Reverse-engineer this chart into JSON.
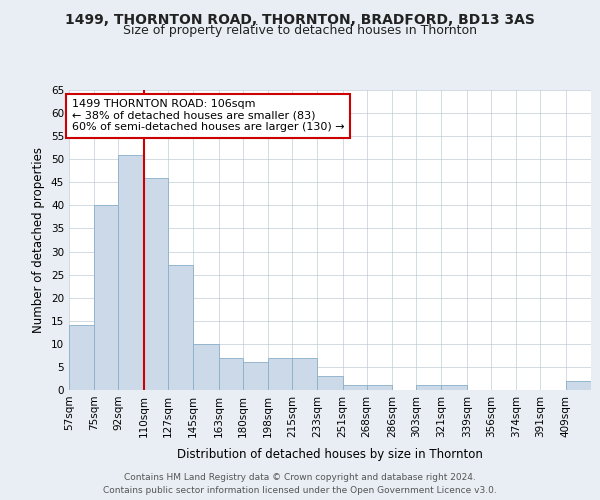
{
  "title": "1499, THORNTON ROAD, THORNTON, BRADFORD, BD13 3AS",
  "subtitle": "Size of property relative to detached houses in Thornton",
  "xlabel": "Distribution of detached houses by size in Thornton",
  "ylabel": "Number of detached properties",
  "bin_labels": [
    "57sqm",
    "75sqm",
    "92sqm",
    "110sqm",
    "127sqm",
    "145sqm",
    "163sqm",
    "180sqm",
    "198sqm",
    "215sqm",
    "233sqm",
    "251sqm",
    "268sqm",
    "286sqm",
    "303sqm",
    "321sqm",
    "339sqm",
    "356sqm",
    "374sqm",
    "391sqm",
    "409sqm"
  ],
  "bin_edges": [
    57,
    75,
    92,
    110,
    127,
    145,
    163,
    180,
    198,
    215,
    233,
    251,
    268,
    286,
    303,
    321,
    339,
    356,
    374,
    391,
    409,
    427
  ],
  "bar_heights": [
    14,
    40,
    51,
    46,
    27,
    10,
    7,
    6,
    7,
    7,
    3,
    1,
    1,
    0,
    1,
    1,
    0,
    0,
    0,
    0,
    2
  ],
  "bar_color": "#ccd9e8",
  "bar_edge_color": "#8aafc8",
  "vline_x": 110,
  "vline_color": "#cc0000",
  "annotation_text": "1499 THORNTON ROAD: 106sqm\n← 38% of detached houses are smaller (83)\n60% of semi-detached houses are larger (130) →",
  "annotation_box_edge": "#cc0000",
  "ylim": [
    0,
    65
  ],
  "yticks": [
    0,
    5,
    10,
    15,
    20,
    25,
    30,
    35,
    40,
    45,
    50,
    55,
    60,
    65
  ],
  "footer_line1": "Contains HM Land Registry data © Crown copyright and database right 2024.",
  "footer_line2": "Contains public sector information licensed under the Open Government Licence v3.0.",
  "bg_color": "#e8eef4",
  "plot_bg_color": "#ffffff",
  "grid_color": "#c0ccd8",
  "title_fontsize": 10,
  "subtitle_fontsize": 9,
  "axis_label_fontsize": 8.5,
  "tick_fontsize": 7.5,
  "annotation_fontsize": 8,
  "footer_fontsize": 6.5
}
